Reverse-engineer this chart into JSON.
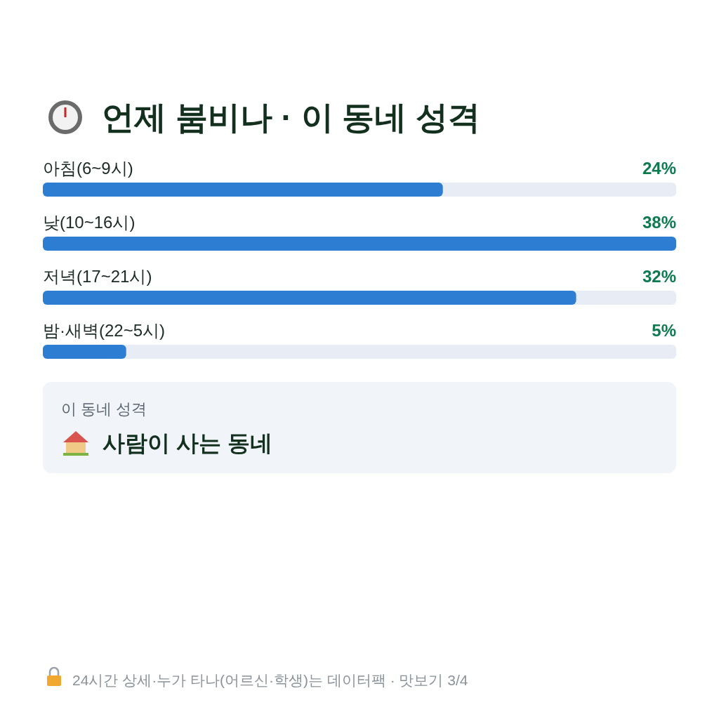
{
  "chart_data": {
    "type": "bar",
    "orientation": "horizontal",
    "title": "언제 붐비나 · 이 동네 성격",
    "categories": [
      "아침(6~9시)",
      "낮(10~16시)",
      "저녁(17~21시)",
      "밤·새벽(22~5시)"
    ],
    "values": [
      24,
      38,
      32,
      5
    ],
    "value_labels": [
      "24%",
      "38%",
      "32%",
      "5%"
    ],
    "color": "#2d7dd2",
    "annotations": [
      "이 동네 성격",
      "사람이 사는 동네",
      "24시간 상세·누가 타나(어르신·학생)는 데이터팩 · 맛보기 3/4"
    ]
  }
}
